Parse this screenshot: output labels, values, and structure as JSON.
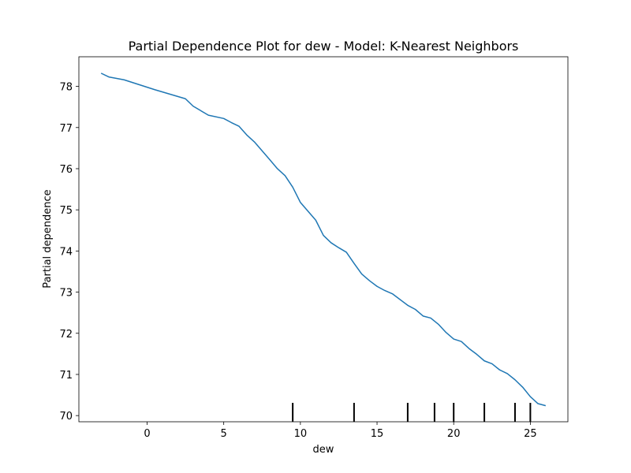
{
  "chart_data": {
    "type": "line",
    "title": "Partial Dependence Plot for dew - Model: K-Nearest Neighbors",
    "xlabel": "dew",
    "ylabel": "Partial dependence",
    "xlim": [
      -4.45,
      27.45
    ],
    "ylim": [
      69.85,
      78.72
    ],
    "xticks": [
      0,
      5,
      10,
      15,
      20,
      25
    ],
    "yticks": [
      70,
      71,
      72,
      73,
      74,
      75,
      76,
      77,
      78
    ],
    "grid": false,
    "line_color": "#1f77b4",
    "series": [
      {
        "x": [
          -3.0,
          -2.5,
          -1.5,
          -0.5,
          0.5,
          1.5,
          2.5,
          3.0,
          4.0,
          5.0,
          5.5,
          6.0,
          6.5,
          7.0,
          8.0,
          8.5,
          9.0,
          9.5,
          10.0,
          11.0,
          11.5,
          12.0,
          12.5,
          13.0,
          13.5,
          14.0,
          14.5,
          15.0,
          15.5,
          16.0,
          17.0,
          17.5,
          18.0,
          18.5,
          19.0,
          19.5,
          20.0,
          20.5,
          21.0,
          21.5,
          22.0,
          22.5,
          23.0,
          23.5,
          24.0,
          24.5,
          25.0,
          25.5,
          26.0
        ],
        "y": [
          78.32,
          78.23,
          78.16,
          78.04,
          77.92,
          77.81,
          77.7,
          77.52,
          77.3,
          77.22,
          77.12,
          77.03,
          76.82,
          76.65,
          76.22,
          76.0,
          75.83,
          75.55,
          75.18,
          74.75,
          74.38,
          74.2,
          74.08,
          73.97,
          73.7,
          73.44,
          73.28,
          73.14,
          73.04,
          72.96,
          72.68,
          72.58,
          72.42,
          72.37,
          72.22,
          72.02,
          71.86,
          71.8,
          71.63,
          71.49,
          71.33,
          71.26,
          71.11,
          71.02,
          70.87,
          70.69,
          70.46,
          70.29,
          70.24
        ]
      }
    ],
    "rug_ticks": [
      9.5,
      13.5,
      17.0,
      18.75,
      20.0,
      22.0,
      24.0,
      25.0
    ]
  }
}
